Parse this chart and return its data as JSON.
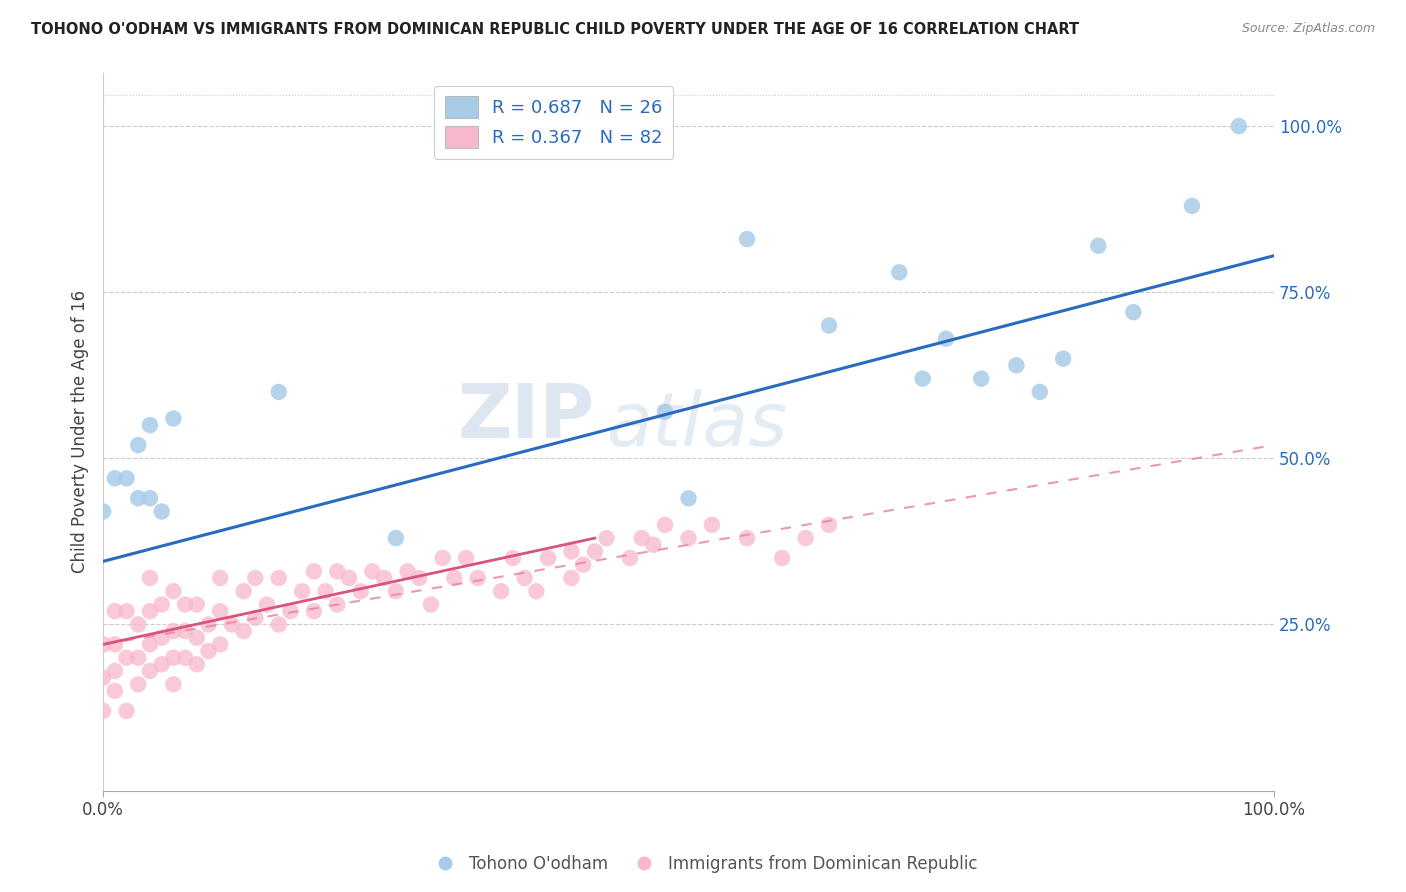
{
  "title": "TOHONO O'ODHAM VS IMMIGRANTS FROM DOMINICAN REPUBLIC CHILD POVERTY UNDER THE AGE OF 16 CORRELATION CHART",
  "source": "Source: ZipAtlas.com",
  "ylabel": "Child Poverty Under the Age of 16",
  "ytick_values": [
    0.25,
    0.5,
    0.75,
    1.0
  ],
  "legend1_label": "R = 0.687   N = 26",
  "legend2_label": "R = 0.367   N = 82",
  "legend_bottom1": "Tohono O'odham",
  "legend_bottom2": "Immigrants from Dominican Republic",
  "blue_color": "#a8cce8",
  "pink_color": "#f7b8cb",
  "blue_line_color": "#2b6bbf",
  "pink_line_color": "#d9547a",
  "pink_dash_color": "#e8889f",
  "watermark_zip": "ZIP",
  "watermark_atlas": "atlas",
  "blue_scatter_x": [
    0.0,
    0.01,
    0.02,
    0.03,
    0.03,
    0.04,
    0.04,
    0.05,
    0.06,
    0.15,
    0.25,
    0.48,
    0.5,
    0.55,
    0.62,
    0.68,
    0.7,
    0.72,
    0.75,
    0.78,
    0.8,
    0.82,
    0.85,
    0.88,
    0.93,
    0.97
  ],
  "blue_scatter_y": [
    0.42,
    0.47,
    0.47,
    0.44,
    0.52,
    0.44,
    0.55,
    0.42,
    0.56,
    0.6,
    0.38,
    0.57,
    0.44,
    0.83,
    0.7,
    0.78,
    0.62,
    0.68,
    0.62,
    0.64,
    0.6,
    0.65,
    0.82,
    0.72,
    0.88,
    1.0
  ],
  "pink_scatter_x": [
    0.0,
    0.0,
    0.0,
    0.01,
    0.01,
    0.01,
    0.01,
    0.02,
    0.02,
    0.02,
    0.03,
    0.03,
    0.03,
    0.04,
    0.04,
    0.04,
    0.04,
    0.05,
    0.05,
    0.05,
    0.06,
    0.06,
    0.06,
    0.06,
    0.07,
    0.07,
    0.07,
    0.08,
    0.08,
    0.08,
    0.09,
    0.09,
    0.1,
    0.1,
    0.1,
    0.11,
    0.12,
    0.12,
    0.13,
    0.13,
    0.14,
    0.15,
    0.15,
    0.16,
    0.17,
    0.18,
    0.18,
    0.19,
    0.2,
    0.2,
    0.21,
    0.22,
    0.23,
    0.24,
    0.25,
    0.26,
    0.27,
    0.28,
    0.29,
    0.3,
    0.31,
    0.32,
    0.34,
    0.35,
    0.36,
    0.37,
    0.38,
    0.4,
    0.4,
    0.41,
    0.42,
    0.43,
    0.45,
    0.46,
    0.47,
    0.48,
    0.5,
    0.52,
    0.55,
    0.58,
    0.6,
    0.62
  ],
  "pink_scatter_y": [
    0.12,
    0.17,
    0.22,
    0.15,
    0.18,
    0.22,
    0.27,
    0.12,
    0.2,
    0.27,
    0.16,
    0.2,
    0.25,
    0.18,
    0.22,
    0.27,
    0.32,
    0.19,
    0.23,
    0.28,
    0.16,
    0.2,
    0.24,
    0.3,
    0.2,
    0.24,
    0.28,
    0.19,
    0.23,
    0.28,
    0.21,
    0.25,
    0.22,
    0.27,
    0.32,
    0.25,
    0.24,
    0.3,
    0.26,
    0.32,
    0.28,
    0.25,
    0.32,
    0.27,
    0.3,
    0.27,
    0.33,
    0.3,
    0.28,
    0.33,
    0.32,
    0.3,
    0.33,
    0.32,
    0.3,
    0.33,
    0.32,
    0.28,
    0.35,
    0.32,
    0.35,
    0.32,
    0.3,
    0.35,
    0.32,
    0.3,
    0.35,
    0.32,
    0.36,
    0.34,
    0.36,
    0.38,
    0.35,
    0.38,
    0.37,
    0.4,
    0.38,
    0.4,
    0.38,
    0.35,
    0.38,
    0.4
  ],
  "xlim": [
    0.0,
    1.0
  ],
  "ylim": [
    0.0,
    1.08
  ],
  "blue_trend": [
    0.0,
    1.0,
    0.345,
    0.805
  ],
  "pink_solid_trend": [
    0.0,
    0.42,
    0.22,
    0.38
  ],
  "pink_dash_trend": [
    0.0,
    1.0,
    0.22,
    0.52
  ]
}
